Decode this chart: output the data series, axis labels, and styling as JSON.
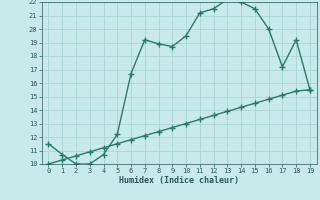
{
  "title": "",
  "xlabel": "Humidex (Indice chaleur)",
  "curve1_x": [
    0,
    1,
    2,
    3,
    4,
    5,
    6,
    7,
    8,
    9,
    10,
    11,
    12,
    13,
    14,
    15,
    16,
    17,
    18,
    19
  ],
  "curve1_y": [
    11.5,
    10.7,
    10.0,
    10.0,
    10.7,
    12.2,
    16.7,
    19.2,
    18.9,
    18.7,
    19.5,
    21.2,
    21.5,
    22.2,
    22.0,
    21.5,
    20.0,
    17.2,
    19.2,
    15.5
  ],
  "curve2_x": [
    0,
    1,
    2,
    3,
    4,
    5,
    6,
    7,
    8,
    9,
    10,
    11,
    12,
    13,
    14,
    15,
    16,
    17,
    18,
    19
  ],
  "curve2_y": [
    10.0,
    10.3,
    10.6,
    10.9,
    11.2,
    11.5,
    11.8,
    12.1,
    12.4,
    12.7,
    13.0,
    13.3,
    13.6,
    13.9,
    14.2,
    14.5,
    14.8,
    15.1,
    15.4,
    15.5
  ],
  "line_color": "#2a7a6a",
  "bg_color": "#c8eaea",
  "grid_color": "#aad4d4",
  "text_color": "#2a5a5a",
  "ylim": [
    10,
    22
  ],
  "xlim": [
    -0.5,
    19.5
  ],
  "yticks": [
    10,
    11,
    12,
    13,
    14,
    15,
    16,
    17,
    18,
    19,
    20,
    21,
    22
  ],
  "xticks": [
    0,
    1,
    2,
    3,
    4,
    5,
    6,
    7,
    8,
    9,
    10,
    11,
    12,
    13,
    14,
    15,
    16,
    17,
    18,
    19
  ],
  "marker": "+",
  "markersize": 4,
  "markeredgewidth": 1.0,
  "linewidth": 1.0
}
